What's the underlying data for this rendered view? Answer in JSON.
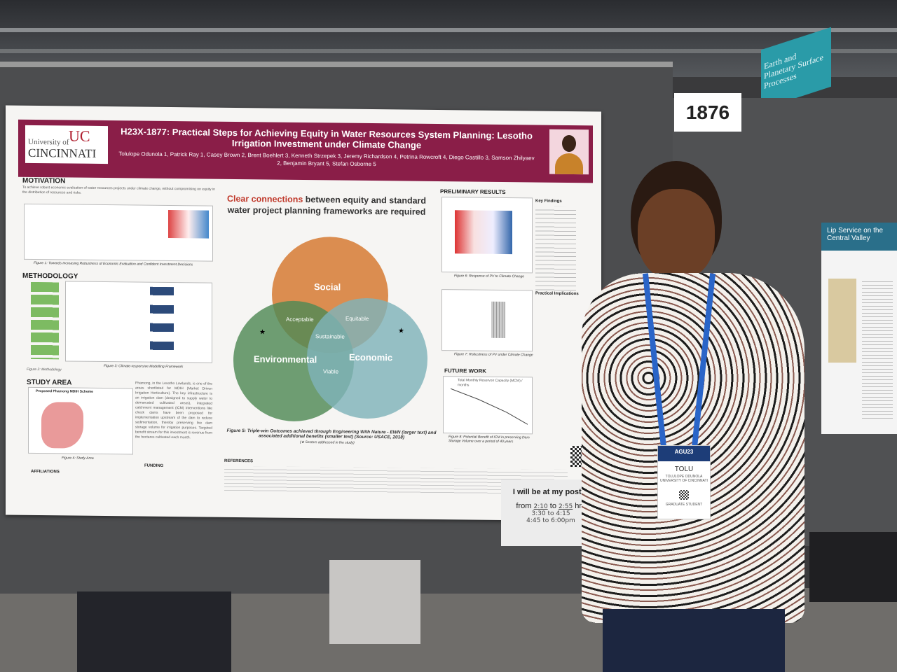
{
  "booth_number": "1876",
  "banner_text": "Earth and Planetary Surface Processes",
  "poster": {
    "logo": {
      "line1": "University of",
      "line2": "CINCINNATI"
    },
    "title": "H23X-1877: Practical Steps for Achieving Equity in Water Resources System Planning: Lesotho Irrigation Investment under Climate Change",
    "authors": "Tolulope Odunola 1, Patrick Ray 1, Casey Brown 2, Brent Boehlert 3, Kenneth Strzepek 3, Jeremy Richardson 4, Petrina Rowcroft 4, Diego Castillo 3, Samson Zhilyaev 2, Benjamin Bryant 5, Stefan Osborne 5",
    "motivation": {
      "heading": "MOTIVATION",
      "text": "To achieve robust economic evaluation of water resources projects under climate change, without compromising on equity in the distribution of resources and risks.",
      "figure_caption": "Figure 1: Towards Increasing Robustness of Economic Evaluation and Confident Investment Decisions"
    },
    "methodology": {
      "heading": "METHODOLOGY",
      "figure_caption": "Figure 3: Climate-responsive Modelling Framework"
    },
    "study_area": {
      "heading": "STUDY AREA",
      "map_title": "Proposed Phamong MDIH Scheme",
      "figure_caption": "Figure 4: Study Area",
      "text": "Phamong, in the Lesotho Lowlands, is one of the areas shortlisted for MDIH (Market Driven Irrigation Horticulture). The key infrastructure is an irrigation dam (designed to supply water to demarcated cultivated areas), integrated catchment management (ICM) interventions like check dams have been proposed for implementation upstream of the dam to reduce sedimentation, thereby preserving live dam storage volume for irrigation purposes. Targeted benefit stream for this investment is revenue from the hectares cultivated each month."
    },
    "affiliations_heading": "AFFILIATIONS",
    "funding_heading": "FUNDING",
    "references_heading": "REFERENCES",
    "claim": {
      "highlight": "Clear connections",
      "rest": "between equity and standard water project planning frameworks are required"
    },
    "venn": {
      "social": "Social",
      "environmental": "Environmental",
      "economic": "Economic",
      "acceptable": "Acceptable",
      "equitable": "Equitable",
      "sustainable": "Sustainable",
      "viable": "Viable",
      "colors": {
        "social": "#d4762c",
        "environmental": "#4f8a56",
        "economic": "#7fb3b9"
      }
    },
    "venn_caption": "Figure 5: Triple-win Outcomes achieved through Engineering With Nature - EWN (larger text) and associated additional benefits (smaller text) (Source: USACE, 2018)",
    "venn_note": "(★ Sectors addressed in the study)",
    "preliminary": {
      "heading": "PRELIMINARY RESULTS",
      "fig6": "Figure 6: Response of PV to Climate Change",
      "fig7": "Figure 7: Robustness of PV under Climate Change",
      "key_findings": "Key Findings",
      "practical": "Practical Implications"
    },
    "future_work": {
      "heading": "FUTURE WORK",
      "chart_title": "Total Monthly Reservoir Capacity (MCM) / months",
      "caption": "Figure 8: Potential Benefit of ICM in preserving Dam Storage Volume over a period of 40 years"
    },
    "accent": "#8a1e48"
  },
  "sign": {
    "line1": "I will be at my poster",
    "from": "from",
    "to": "to",
    "hrs": "hrs",
    "start": "2:10",
    "end": "2:55",
    "slot2": "3:30 to 4:15",
    "slot3": "4:45 to 6:00pm"
  },
  "badge": {
    "event": "AGU23",
    "first_name": "TOLU",
    "full_name": "TOLULOPE ODUNOLA",
    "org": "UNIVERSITY OF CINCINNATI",
    "role": "GRADUATE STUDENT",
    "lanyard": "AGU23"
  },
  "right_poster": {
    "title": "Lip Service on the Central Valley"
  }
}
